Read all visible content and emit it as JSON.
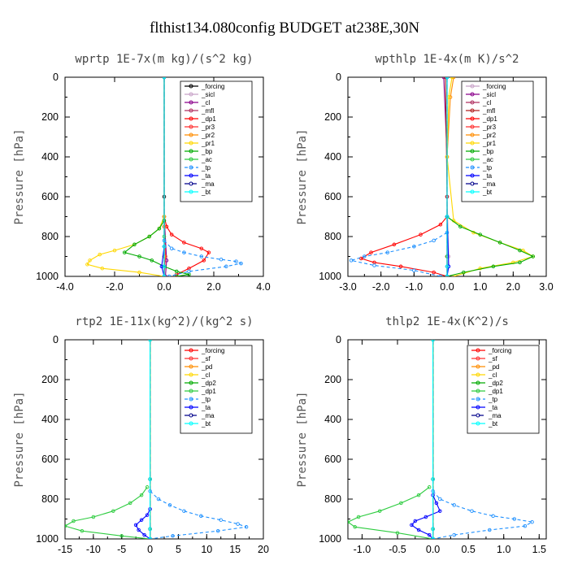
{
  "figure_title": "flthist134.080config  BUDGET at238E,30N",
  "chart_data": [
    {
      "type": "line",
      "title": "wprtp  1E-7x(m kg)/(s^2 kg)",
      "ylabel": "Pressure [hPa]",
      "xlim": [
        -4,
        4
      ],
      "ylim": [
        0,
        1000
      ],
      "y_inverted": true,
      "xticks": [
        "-4.0",
        "-2.0",
        "0.0",
        "2.0",
        "4.0"
      ],
      "yticks": [
        "0",
        "200",
        "400",
        "600",
        "800",
        "1000"
      ],
      "legend_position": "top-right",
      "series": [
        {
          "name": "_forcing",
          "color": "#000000",
          "dash": "",
          "x": [
            0,
            0,
            0,
            0
          ],
          "y": [
            0,
            600,
            900,
            1000
          ]
        },
        {
          "name": "_sicl",
          "color": "#c8a2c8",
          "dash": "",
          "x": [
            0,
            0,
            0.05,
            0
          ],
          "y": [
            0,
            700,
            900,
            1000
          ]
        },
        {
          "name": "_cl",
          "color": "#8b008b",
          "dash": "",
          "x": [
            0,
            0,
            0.1,
            0.05
          ],
          "y": [
            0,
            700,
            920,
            1000
          ]
        },
        {
          "name": "_mfl",
          "color": "#b03060",
          "dash": "",
          "x": [
            0,
            0,
            0,
            0
          ],
          "y": [
            0,
            700,
            950,
            1000
          ]
        },
        {
          "name": "_dp1",
          "color": "#ff0000",
          "dash": "",
          "x": [
            0,
            0,
            0.1,
            0.3,
            0.8,
            1.5,
            1.8,
            1.6,
            1.0,
            0.5
          ],
          "y": [
            0,
            700,
            750,
            790,
            830,
            860,
            880,
            920,
            960,
            990
          ]
        },
        {
          "name": "_pr3",
          "color": "#ff3030",
          "dash": "",
          "x": [
            0,
            0,
            0.05,
            0
          ],
          "y": [
            0,
            750,
            900,
            1000
          ]
        },
        {
          "name": "_pr2",
          "color": "#ff8c00",
          "dash": "",
          "x": [
            0,
            0,
            0,
            0
          ],
          "y": [
            0,
            750,
            900,
            1000
          ]
        },
        {
          "name": "_pr1",
          "color": "#ffd700",
          "dash": "",
          "x": [
            0,
            0,
            -0.2,
            -0.6,
            -1.2,
            -2.0,
            -2.6,
            -3.0,
            -3.1,
            -2.5,
            -1.0,
            0
          ],
          "y": [
            0,
            700,
            760,
            800,
            840,
            870,
            890,
            920,
            940,
            960,
            980,
            1000
          ]
        },
        {
          "name": "_bp",
          "color": "#00aa00",
          "dash": "",
          "x": [
            0,
            -0.2,
            -0.6,
            -1.2,
            -1.6,
            -1.0,
            -0.5,
            0,
            0.5,
            1.0,
            0.5
          ],
          "y": [
            720,
            760,
            800,
            840,
            880,
            900,
            920,
            950,
            975,
            990,
            1000
          ]
        },
        {
          "name": "_ac",
          "color": "#2ecc40",
          "dash": "",
          "x": [
            0,
            0,
            0,
            0
          ],
          "y": [
            0,
            800,
            950,
            1000
          ]
        },
        {
          "name": "_tp",
          "color": "#1e90ff",
          "dash": "4,3",
          "x": [
            0,
            0.3,
            0.8,
            1.5,
            2.3,
            2.9,
            3.1,
            2.5,
            1.0,
            0.2
          ],
          "y": [
            820,
            860,
            880,
            900,
            915,
            925,
            935,
            950,
            975,
            1000
          ]
        },
        {
          "name": "_ta",
          "color": "#0000ff",
          "dash": "",
          "x": [
            0,
            0,
            -0.1,
            0
          ],
          "y": [
            0,
            850,
            950,
            1000
          ]
        },
        {
          "name": "_ma",
          "color": "#00008b",
          "dash": "6,3",
          "x": [
            0,
            0,
            0,
            0
          ],
          "y": [
            0,
            850,
            950,
            1000
          ]
        },
        {
          "name": "_bt",
          "color": "#00ffff",
          "dash": "",
          "x": [
            0,
            0,
            0,
            0
          ],
          "y": [
            0,
            850,
            950,
            1000
          ]
        }
      ]
    },
    {
      "type": "line",
      "title": "wpthlp  1E-4x(m K)/s^2",
      "ylabel": "Pressure [hPa]",
      "xlim": [
        -3,
        3
      ],
      "ylim": [
        0,
        1000
      ],
      "y_inverted": true,
      "xticks": [
        "-3.0",
        "-2.0",
        "-1.0",
        "0.0",
        "1.0",
        "2.0",
        "3.0"
      ],
      "yticks": [
        "0",
        "200",
        "400",
        "600",
        "800",
        "1000"
      ],
      "legend_position": "top-right",
      "series": [
        {
          "name": "_forcing",
          "color": "#c8a2c8",
          "dash": "",
          "x": [
            0,
            0,
            0.05,
            0
          ],
          "y": [
            0,
            600,
            900,
            1000
          ]
        },
        {
          "name": "_sicl",
          "color": "#8b008b",
          "dash": "",
          "x": [
            -0.1,
            0,
            0,
            0
          ],
          "y": [
            0,
            400,
            900,
            1000
          ]
        },
        {
          "name": "_cl",
          "color": "#b03060",
          "dash": "",
          "x": [
            0,
            0,
            0,
            0
          ],
          "y": [
            0,
            600,
            900,
            1000
          ]
        },
        {
          "name": "_mfl",
          "color": "#b22222",
          "dash": "",
          "x": [
            -0.05,
            0,
            0,
            0
          ],
          "y": [
            0,
            600,
            900,
            1000
          ]
        },
        {
          "name": "_dp1",
          "color": "#ff0000",
          "dash": "",
          "x": [
            0,
            -0.2,
            -0.8,
            -1.6,
            -2.3,
            -2.6,
            -2.2,
            -1.4,
            -0.4,
            0
          ],
          "y": [
            700,
            740,
            790,
            840,
            880,
            910,
            930,
            950,
            980,
            1000
          ]
        },
        {
          "name": "_pr3",
          "color": "#ff3030",
          "dash": "",
          "x": [
            0,
            0,
            0,
            0
          ],
          "y": [
            0,
            700,
            900,
            1000
          ]
        },
        {
          "name": "_pr2",
          "color": "#ff8c00",
          "dash": "",
          "x": [
            0.2,
            0.1,
            0,
            0
          ],
          "y": [
            0,
            100,
            400,
            1000
          ]
        },
        {
          "name": "_pr1",
          "color": "#ffd700",
          "dash": "",
          "x": [
            0.15,
            0.05,
            0,
            0.2,
            0.8,
            1.6,
            2.3,
            2.6,
            2.0,
            1.0,
            0.2
          ],
          "y": [
            0,
            100,
            400,
            720,
            780,
            830,
            870,
            900,
            930,
            960,
            1000
          ]
        },
        {
          "name": "_bp",
          "color": "#00aa00",
          "dash": "",
          "x": [
            0,
            0.4,
            1.0,
            1.6,
            2.2,
            2.6,
            2.2,
            1.4,
            0.5,
            0
          ],
          "y": [
            700,
            750,
            790,
            830,
            870,
            900,
            930,
            950,
            980,
            1000
          ]
        },
        {
          "name": "_ac",
          "color": "#2ecc40",
          "dash": "",
          "x": [
            0,
            0,
            0,
            0
          ],
          "y": [
            0,
            700,
            900,
            1000
          ]
        },
        {
          "name": "_tp",
          "color": "#1e90ff",
          "dash": "4,3",
          "x": [
            0,
            -0.4,
            -1.0,
            -1.8,
            -2.5,
            -2.9,
            -2.2,
            -1.0,
            -0.2
          ],
          "y": [
            780,
            820,
            850,
            880,
            900,
            920,
            945,
            970,
            1000
          ]
        },
        {
          "name": "_ta",
          "color": "#0000ff",
          "dash": "",
          "x": [
            0,
            0,
            0.05,
            0
          ],
          "y": [
            0,
            700,
            950,
            1000
          ]
        },
        {
          "name": "_ma",
          "color": "#00008b",
          "dash": "6,3",
          "x": [
            0,
            0,
            0,
            0
          ],
          "y": [
            0,
            700,
            950,
            1000
          ]
        },
        {
          "name": "_bt",
          "color": "#00ffff",
          "dash": "",
          "x": [
            0,
            0,
            0,
            0
          ],
          "y": [
            0,
            700,
            950,
            1000
          ]
        }
      ]
    },
    {
      "type": "line",
      "title": "rtp2  1E-11x(kg^2)/(kg^2 s)",
      "ylabel": "Pressure [hPa]",
      "xlim": [
        -15,
        20
      ],
      "ylim": [
        0,
        1000
      ],
      "y_inverted": true,
      "xticks": [
        "-15",
        "-10",
        "-5",
        "0",
        "5",
        "10",
        "15",
        "20"
      ],
      "yticks": [
        "0",
        "200",
        "400",
        "600",
        "800",
        "1000"
      ],
      "legend_position": "top-right",
      "series": [
        {
          "name": "_forcing",
          "color": "#ff0000",
          "dash": "",
          "x": [
            0,
            0,
            0,
            0
          ],
          "y": [
            0,
            700,
            950,
            1000
          ]
        },
        {
          "name": "_sf",
          "color": "#ff3030",
          "dash": "",
          "x": [
            0,
            0,
            0,
            0
          ],
          "y": [
            0,
            700,
            950,
            1000
          ]
        },
        {
          "name": "_pd",
          "color": "#ff8c00",
          "dash": "",
          "x": [
            0,
            0,
            0,
            0
          ],
          "y": [
            0,
            700,
            950,
            1000
          ]
        },
        {
          "name": "_cl",
          "color": "#ffd700",
          "dash": "",
          "x": [
            0,
            0,
            0,
            0
          ],
          "y": [
            0,
            700,
            950,
            1000
          ]
        },
        {
          "name": "_dp2",
          "color": "#00aa00",
          "dash": "",
          "x": [
            0,
            0,
            0,
            0
          ],
          "y": [
            0,
            700,
            950,
            1000
          ]
        },
        {
          "name": "_dp1",
          "color": "#2ecc40",
          "dash": "",
          "x": [
            -0.5,
            -1.5,
            -3.5,
            -6.5,
            -10.0,
            -13.5,
            -15.0,
            -12.0,
            -5.0,
            0
          ],
          "y": [
            740,
            780,
            820,
            860,
            890,
            910,
            935,
            960,
            985,
            1000
          ]
        },
        {
          "name": "_tp",
          "color": "#1e90ff",
          "dash": "4,3",
          "x": [
            0,
            1.5,
            3.5,
            6.0,
            9.0,
            12.5,
            15.5,
            17.0,
            12.0,
            4.0,
            0
          ],
          "y": [
            760,
            800,
            830,
            860,
            885,
            905,
            925,
            940,
            960,
            985,
            1000
          ]
        },
        {
          "name": "_ta",
          "color": "#0000ff",
          "dash": "",
          "x": [
            0,
            -0.5,
            -1.5,
            -2.5,
            -2.0,
            -1.0,
            0
          ],
          "y": [
            850,
            880,
            905,
            930,
            955,
            980,
            1000
          ]
        },
        {
          "name": "_ma",
          "color": "#00008b",
          "dash": "6,3",
          "x": [
            0,
            0,
            0,
            0
          ],
          "y": [
            0,
            700,
            950,
            1000
          ]
        },
        {
          "name": "_bt",
          "color": "#00ffff",
          "dash": "",
          "x": [
            0,
            0,
            0,
            0
          ],
          "y": [
            0,
            700,
            950,
            1000
          ]
        }
      ]
    },
    {
      "type": "line",
      "title": "thlp2  1E-4x(K^2)/s",
      "ylabel": "Pressure [hPa]",
      "xlim": [
        -1.2,
        1.6
      ],
      "ylim": [
        0,
        1000
      ],
      "y_inverted": true,
      "xticks": [
        "-1.0",
        "-0.5",
        "0.0",
        "0.5",
        "1.0",
        "1.5"
      ],
      "yticks": [
        "0",
        "200",
        "400",
        "600",
        "800",
        "1000"
      ],
      "legend_position": "top-right",
      "series": [
        {
          "name": "_forcing",
          "color": "#ff0000",
          "dash": "",
          "x": [
            0,
            0,
            0,
            0
          ],
          "y": [
            0,
            700,
            950,
            1000
          ]
        },
        {
          "name": "_sf",
          "color": "#ff3030",
          "dash": "",
          "x": [
            0,
            0,
            0,
            0
          ],
          "y": [
            0,
            700,
            950,
            1000
          ]
        },
        {
          "name": "_pd",
          "color": "#ff8c00",
          "dash": "",
          "x": [
            0,
            0,
            0,
            0
          ],
          "y": [
            0,
            700,
            950,
            1000
          ]
        },
        {
          "name": "_cl",
          "color": "#ffd700",
          "dash": "",
          "x": [
            0,
            0,
            0,
            0
          ],
          "y": [
            0,
            700,
            950,
            1000
          ]
        },
        {
          "name": "_dp2",
          "color": "#00aa00",
          "dash": "",
          "x": [
            0,
            0,
            0,
            0
          ],
          "y": [
            0,
            700,
            950,
            1000
          ]
        },
        {
          "name": "_dp1",
          "color": "#2ecc40",
          "dash": "",
          "x": [
            -0.05,
            -0.2,
            -0.45,
            -0.75,
            -1.05,
            -1.2,
            -1.1,
            -0.5,
            0
          ],
          "y": [
            740,
            780,
            820,
            860,
            890,
            915,
            940,
            970,
            1000
          ]
        },
        {
          "name": "_tp",
          "color": "#1e90ff",
          "dash": "4,3",
          "x": [
            0,
            0.1,
            0.3,
            0.55,
            0.85,
            1.15,
            1.4,
            1.3,
            0.8,
            0.3,
            0
          ],
          "y": [
            760,
            800,
            830,
            860,
            885,
            900,
            915,
            935,
            955,
            980,
            1000
          ]
        },
        {
          "name": "_ta",
          "color": "#0000ff",
          "dash": "",
          "x": [
            0,
            0.05,
            0.1,
            -0.1,
            -0.25,
            -0.3,
            -0.2,
            -0.05,
            0
          ],
          "y": [
            780,
            820,
            860,
            890,
            910,
            930,
            955,
            980,
            1000
          ]
        },
        {
          "name": "_ma",
          "color": "#00008b",
          "dash": "6,3",
          "x": [
            0,
            0,
            0,
            0
          ],
          "y": [
            0,
            700,
            950,
            1000
          ]
        },
        {
          "name": "_bt",
          "color": "#00ffff",
          "dash": "",
          "x": [
            0,
            0,
            0,
            0
          ],
          "y": [
            0,
            700,
            950,
            1000
          ]
        }
      ]
    }
  ]
}
